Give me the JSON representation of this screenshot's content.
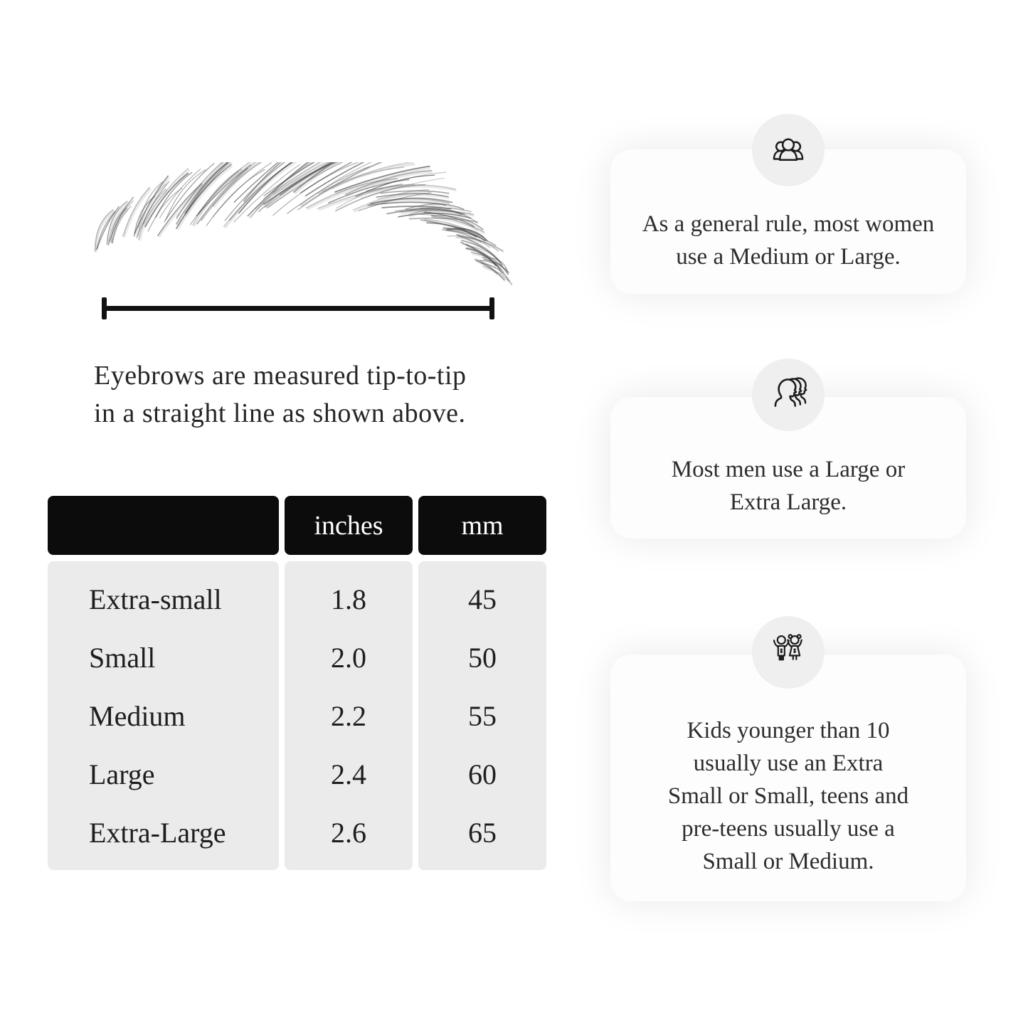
{
  "measurement": {
    "caption_lines": [
      "Eyebrows are measured tip-to-tip",
      "in a straight line as shown above."
    ]
  },
  "size_table": {
    "column_headers": [
      "",
      "inches",
      "mm"
    ],
    "rows": [
      {
        "label": "Extra-small",
        "inches": "1.8",
        "mm": "45"
      },
      {
        "label": "Small",
        "inches": "2.0",
        "mm": "50"
      },
      {
        "label": "Medium",
        "inches": "2.2",
        "mm": "55"
      },
      {
        "label": "Large",
        "inches": "2.4",
        "mm": "60"
      },
      {
        "label": "Extra-Large",
        "inches": "2.6",
        "mm": "65"
      }
    ]
  },
  "info_cards": [
    {
      "icon": "women-group-icon",
      "lines": [
        "As a general rule, most women",
        "use a Medium or Large."
      ]
    },
    {
      "icon": "men-group-icon",
      "lines": [
        "Most men use a Large or",
        "Extra Large."
      ]
    },
    {
      "icon": "kids-icon",
      "lines": [
        "Kids younger than 10",
        "usually use an Extra",
        "Small or Small, teens and",
        "pre-teens usually use a",
        "Small or Medium."
      ]
    }
  ],
  "colors": {
    "background": "#ffffff",
    "table_header_bg": "#0c0c0c",
    "table_header_text": "#ffffff",
    "table_body_bg": "#ebebeb",
    "card_bg": "#fdfdfd",
    "icon_circle_bg": "#efefef",
    "line": "#111111",
    "text": "#242424"
  }
}
